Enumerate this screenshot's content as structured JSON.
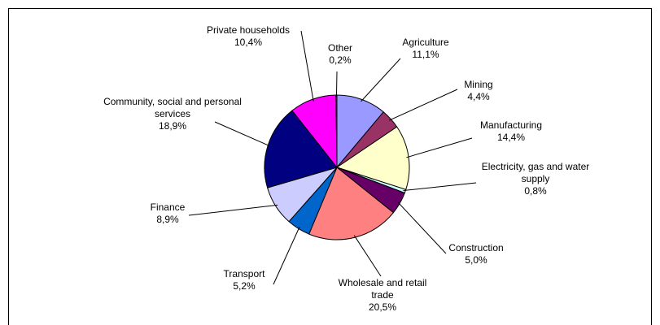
{
  "chart_data": {
    "type": "pie",
    "categories": [
      "Agriculture",
      "Mining",
      "Manufacturing",
      "Electricity, gas and water supply",
      "Construction",
      "Wholesale and retail trade",
      "Transport",
      "Finance",
      "Community, social and personal services",
      "Private households",
      "Other"
    ],
    "values": [
      11.1,
      4.4,
      14.4,
      0.8,
      5.0,
      20.5,
      5.2,
      8.9,
      18.9,
      10.4,
      0.2
    ],
    "value_labels": [
      "11,1%",
      "4,4%",
      "14,4%",
      "0,8%",
      "5,0%",
      "20,5%",
      "5,2%",
      "8,9%",
      "18,9%",
      "10,4%",
      "0,2%"
    ],
    "colors": [
      "#9999ff",
      "#993366",
      "#ffffcc",
      "#ccffff",
      "#660066",
      "#ff8080",
      "#0066cc",
      "#ccccff",
      "#000080",
      "#ff00ff",
      "#ffffff"
    ]
  }
}
